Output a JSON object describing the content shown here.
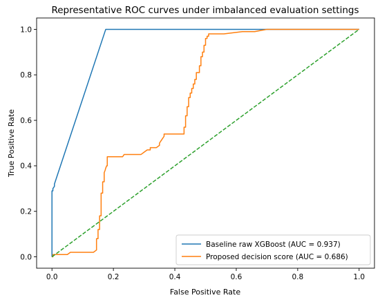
{
  "chart_data": {
    "type": "line",
    "title": "Representative ROC curves under imbalanced evaluation settings",
    "xlabel": "False Positive Rate",
    "ylabel": "True Positive Rate",
    "xlim": [
      -0.05,
      1.05
    ],
    "ylim": [
      -0.05,
      1.05
    ],
    "xticks": [
      "0.0",
      "0.2",
      "0.4",
      "0.6",
      "0.8",
      "1.0"
    ],
    "yticks": [
      "0.0",
      "0.2",
      "0.4",
      "0.6",
      "0.8",
      "1.0"
    ],
    "grid": false,
    "legend_position": "lower-right",
    "series": [
      {
        "name": "Baseline raw XGBoost (AUC = 0.937)",
        "color": "#1f77b4",
        "style": "solid",
        "x": [
          0.0,
          0.0,
          0.003,
          0.003,
          0.008,
          0.008,
          0.175,
          0.67,
          1.0
        ],
        "y": [
          0.0,
          0.29,
          0.29,
          0.3,
          0.31,
          0.32,
          1.0,
          1.0,
          1.0
        ]
      },
      {
        "name": "Proposed decision score (AUC = 0.686)",
        "color": "#ff7f0e",
        "style": "solid",
        "x": [
          0.0,
          0.003,
          0.003,
          0.05,
          0.06,
          0.135,
          0.145,
          0.145,
          0.15,
          0.15,
          0.155,
          0.155,
          0.16,
          0.16,
          0.165,
          0.165,
          0.17,
          0.17,
          0.173,
          0.175,
          0.178,
          0.18,
          0.18,
          0.23,
          0.235,
          0.29,
          0.3,
          0.31,
          0.32,
          0.32,
          0.34,
          0.35,
          0.35,
          0.355,
          0.36,
          0.365,
          0.365,
          0.43,
          0.43,
          0.435,
          0.435,
          0.44,
          0.44,
          0.445,
          0.445,
          0.45,
          0.45,
          0.455,
          0.455,
          0.46,
          0.46,
          0.465,
          0.465,
          0.47,
          0.47,
          0.48,
          0.48,
          0.485,
          0.485,
          0.49,
          0.49,
          0.495,
          0.495,
          0.5,
          0.5,
          0.505,
          0.505,
          0.51,
          0.51,
          0.56,
          0.56,
          0.62,
          0.66,
          0.7,
          1.0
        ],
        "y": [
          0.0,
          0.0,
          0.01,
          0.01,
          0.02,
          0.02,
          0.03,
          0.08,
          0.08,
          0.12,
          0.12,
          0.18,
          0.18,
          0.28,
          0.28,
          0.33,
          0.33,
          0.37,
          0.38,
          0.39,
          0.4,
          0.4,
          0.44,
          0.44,
          0.45,
          0.45,
          0.46,
          0.47,
          0.47,
          0.48,
          0.48,
          0.49,
          0.5,
          0.51,
          0.52,
          0.53,
          0.54,
          0.54,
          0.57,
          0.57,
          0.62,
          0.62,
          0.66,
          0.66,
          0.7,
          0.7,
          0.72,
          0.72,
          0.74,
          0.74,
          0.76,
          0.76,
          0.78,
          0.78,
          0.81,
          0.81,
          0.84,
          0.84,
          0.88,
          0.88,
          0.9,
          0.9,
          0.93,
          0.93,
          0.96,
          0.96,
          0.97,
          0.97,
          0.98,
          0.98,
          0.98,
          0.99,
          0.99,
          1.0,
          1.0
        ]
      },
      {
        "name": "",
        "color": "#2ca02c",
        "style": "dashed",
        "x": [
          0.0,
          1.0
        ],
        "y": [
          0.0,
          1.0
        ]
      }
    ]
  }
}
